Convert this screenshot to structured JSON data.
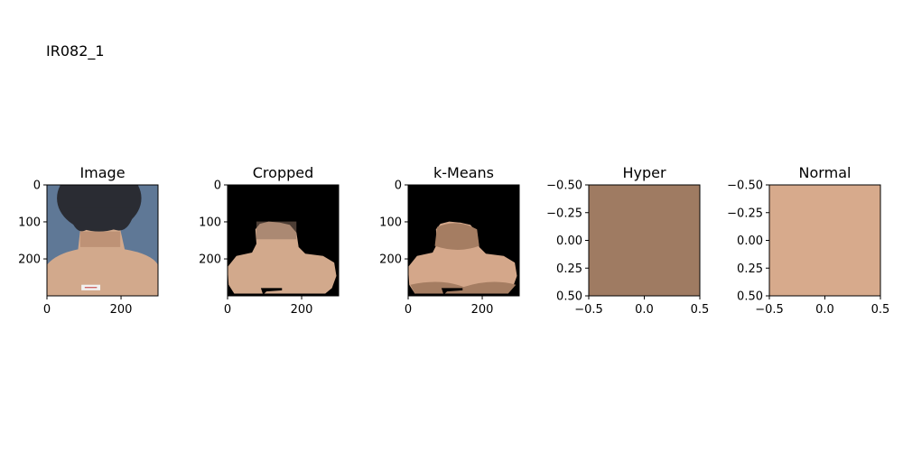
{
  "figure": {
    "suptitle": "IR082_1"
  },
  "panels": [
    {
      "title": "Image",
      "kind": "photo",
      "xticks": [
        "0",
        "200"
      ],
      "yticks": [
        "0",
        "100",
        "200"
      ]
    },
    {
      "title": "Cropped",
      "kind": "cropped",
      "xticks": [
        "0",
        "200"
      ],
      "yticks": [
        "0",
        "100",
        "200"
      ]
    },
    {
      "title": "k-Means",
      "kind": "kmeans",
      "xticks": [
        "0",
        "200"
      ],
      "yticks": [
        "0",
        "100",
        "200"
      ]
    },
    {
      "title": "Hyper",
      "kind": "swatch",
      "color": "#9f7b62",
      "xticks": [
        "−0.5",
        "0.0",
        "0.5"
      ],
      "yticks": [
        "−0.50",
        "−0.25",
        "0.00",
        "0.25",
        "0.50"
      ]
    },
    {
      "title": "Normal",
      "kind": "swatch",
      "color": "#d7aa8c",
      "xticks": [
        "−0.5",
        "0.0",
        "0.5"
      ],
      "yticks": [
        "−0.50",
        "−0.25",
        "0.00",
        "0.25",
        "0.50"
      ]
    }
  ],
  "colors": {
    "photo_background": "#5f7896",
    "hair": "#2a2c33",
    "skin": "#d2a98c",
    "skin_shadow": "#b08468",
    "kmeans_light": "#d4a78a",
    "kmeans_dark": "#a57d62",
    "crop_background": "#000000",
    "label_sticker": "#f2f2f2"
  }
}
